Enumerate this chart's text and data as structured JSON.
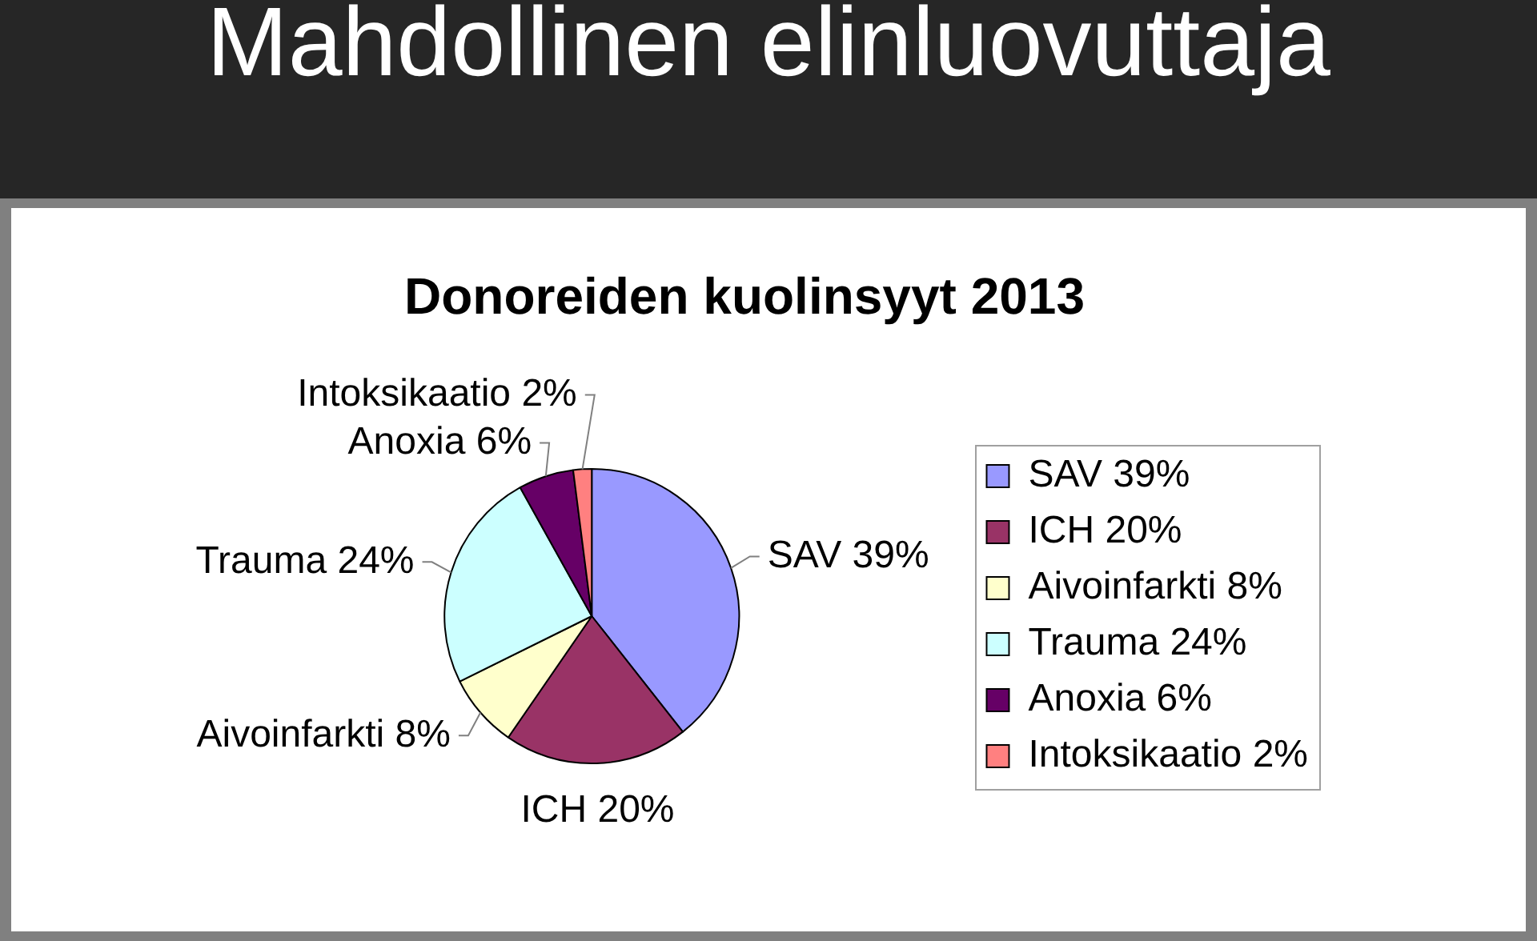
{
  "chart_data": {
    "type": "pie",
    "title": "Mahdollinen elinluovuttaja",
    "subtitle": "Donoreiden kuolinsyyt 2013",
    "categories": [
      "SAV 39%",
      "ICH 20%",
      "Aivoinfarkti 8%",
      "Trauma 24%",
      "Anoxia 6%",
      "Intoksikaatio 2%"
    ],
    "values": [
      39,
      20,
      8,
      24,
      6,
      2
    ],
    "colors": [
      "#9999ff",
      "#993366",
      "#ffffcc",
      "#ccffff",
      "#660066",
      "#ff8080"
    ],
    "value_labels": [
      "SAV 39%",
      "ICH 20%",
      "Aivoinfarkti 8%",
      "Trauma 24%",
      "Anoxia 6%",
      "Intoksikaatio 2%"
    ],
    "legend": "right"
  }
}
